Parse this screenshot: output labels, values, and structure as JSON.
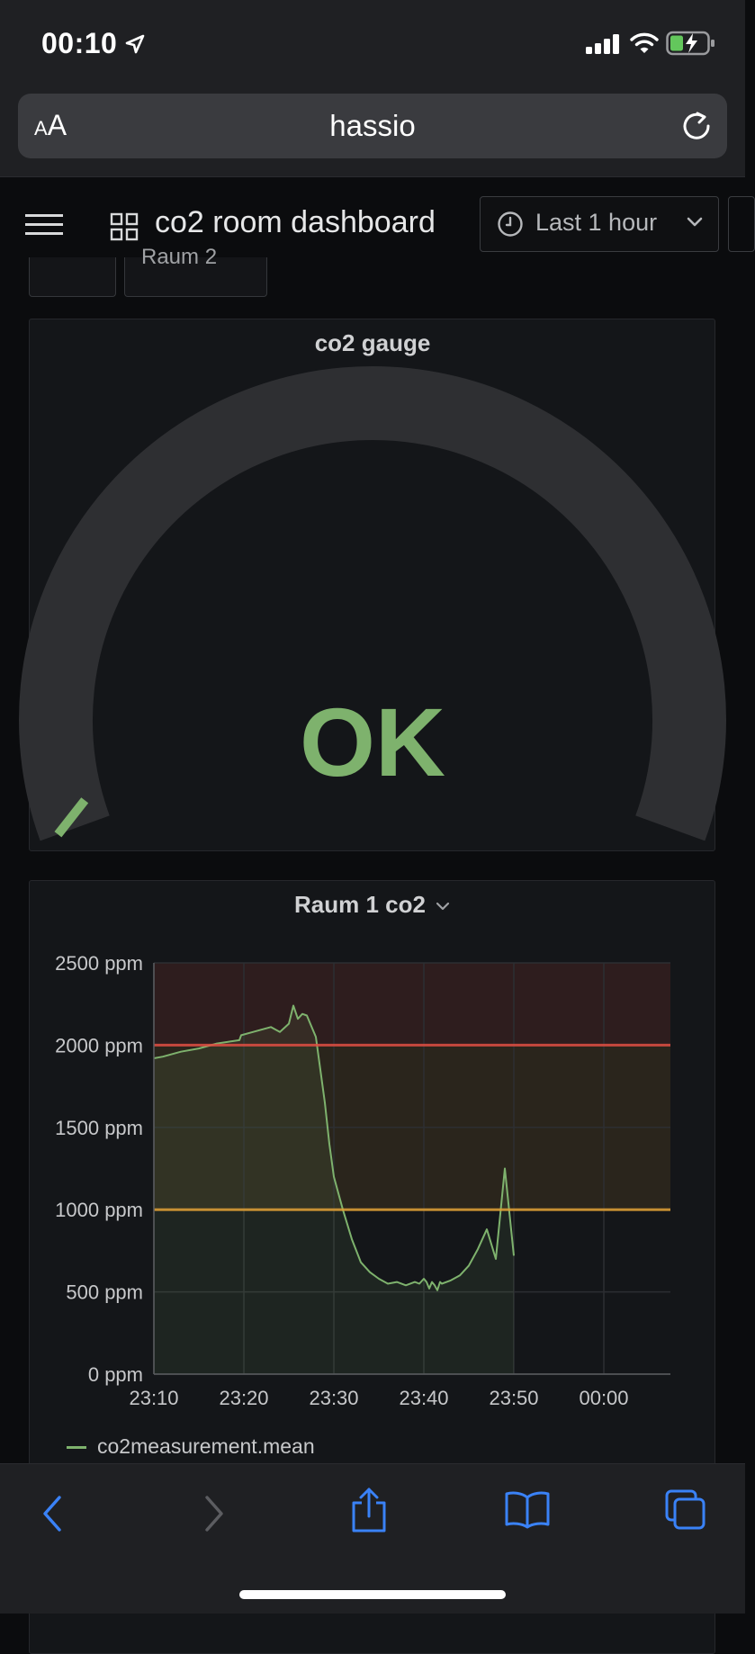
{
  "status_bar": {
    "time": "00:10"
  },
  "browser": {
    "aa_label_small": "A",
    "aa_label_large": "A",
    "url": "hassio"
  },
  "dashboard": {
    "title": "co2 room dashboard",
    "time_range": "Last 1 hour",
    "variable_label": "Raum 2"
  },
  "gauge_panel": {
    "title": "co2 gauge",
    "value_text": "OK",
    "value_color": "#7eb26d",
    "value_fraction": 0.02
  },
  "graph_panel": {
    "title": "Raum 1 co2",
    "legend": "co2measurement.mean"
  },
  "chart_data": {
    "type": "area",
    "title": "Raum 1 co2",
    "xlabel": "",
    "ylabel": "",
    "x_ticks": [
      "23:10",
      "23:20",
      "23:30",
      "23:40",
      "23:50",
      "00:00"
    ],
    "y_ticks": [
      "0 ppm",
      "500 ppm",
      "1000 ppm",
      "1500 ppm",
      "2000 ppm",
      "2500 ppm"
    ],
    "ylim": [
      0,
      2500
    ],
    "x_unit": "minutes after 23:10",
    "thresholds": [
      {
        "value": 1000,
        "color": "#e0a035"
      },
      {
        "value": 2000,
        "color": "#e24d42"
      }
    ],
    "series": [
      {
        "name": "co2measurement.mean",
        "color": "#7eb26d",
        "x": [
          0,
          1,
          3,
          5,
          7,
          9.5,
          9.7,
          11,
          13,
          14,
          15,
          15.5,
          16,
          16.5,
          17,
          18,
          19,
          19.5,
          20,
          21,
          22,
          23,
          24,
          25,
          26,
          27,
          28,
          29,
          29.5,
          30,
          30.3,
          30.6,
          30.9,
          31.2,
          31.5,
          31.8,
          32,
          33,
          34,
          35,
          36,
          37,
          38,
          39,
          40
        ],
        "values": [
          1920,
          1930,
          1960,
          1980,
          2010,
          2030,
          2060,
          2080,
          2110,
          2080,
          2130,
          2240,
          2160,
          2190,
          2180,
          2050,
          1650,
          1400,
          1200,
          1000,
          820,
          680,
          620,
          580,
          550,
          560,
          540,
          560,
          550,
          580,
          560,
          520,
          560,
          540,
          510,
          560,
          550,
          570,
          600,
          660,
          760,
          880,
          700,
          1250,
          720
        ]
      }
    ]
  }
}
